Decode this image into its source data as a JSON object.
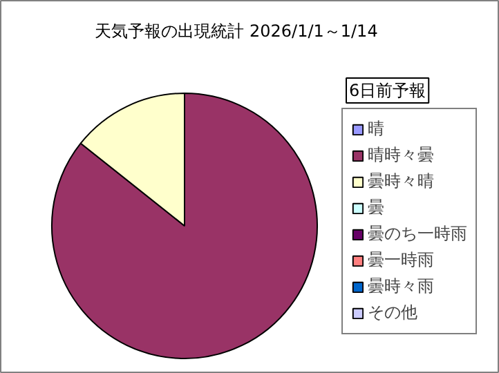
{
  "chart_data": {
    "type": "pie",
    "title": "天気予報の出現統計 2026/1/1～1/14",
    "subtitle": "6日前予報",
    "categories": [
      "晴",
      "晴時々曇",
      "曇時々晴",
      "曇",
      "曇のち一時雨",
      "曇一時雨",
      "曇時々雨",
      "その他"
    ],
    "values": [
      0,
      85.7,
      14.3,
      0,
      0,
      0,
      0,
      0
    ],
    "colors": [
      "#9999ff",
      "#993366",
      "#ffffcc",
      "#ccffff",
      "#660066",
      "#ff8080",
      "#0066cc",
      "#ccccff"
    ],
    "legend": "right"
  }
}
